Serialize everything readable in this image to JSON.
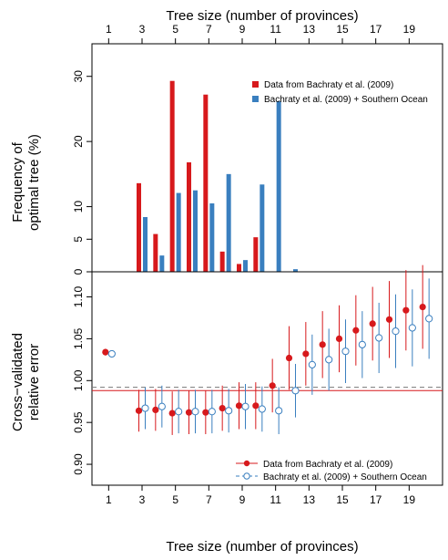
{
  "chart_data": [
    {
      "type": "bar",
      "top_xlabel": "Tree size (number of provinces)",
      "ylabel_line1": "Frequency of",
      "ylabel_line2": "optimal tree (%)",
      "xlim": [
        0,
        21
      ],
      "ylim": [
        0,
        35
      ],
      "xticks": [
        1,
        3,
        5,
        7,
        9,
        11,
        13,
        15,
        17,
        19
      ],
      "yticks": [
        0,
        5,
        10,
        20,
        30
      ],
      "legend_position": "top-right",
      "series": [
        {
          "name": "Data from Bachraty et al. (2009)",
          "color": "#d7191c",
          "x": [
            3,
            4,
            5,
            6,
            7,
            8,
            9,
            10
          ],
          "values": [
            13.6,
            5.8,
            29.3,
            16.8,
            27.2,
            3.1,
            1.2,
            5.3
          ]
        },
        {
          "name": "Bachraty et al. (2009) + Southern Ocean",
          "color": "#3a7fbf",
          "x": [
            3,
            4,
            5,
            6,
            7,
            8,
            9,
            10,
            11,
            12
          ],
          "values": [
            8.4,
            2.5,
            12.1,
            12.5,
            10.5,
            15.0,
            1.8,
            13.4,
            26.2,
            0.4
          ]
        }
      ]
    },
    {
      "type": "scatter",
      "xlabel": "Tree size (number of provinces)",
      "ylabel_line1": "Cross−validated",
      "ylabel_line2": "relative error",
      "xlim": [
        0,
        21
      ],
      "ylim": [
        0.875,
        1.13
      ],
      "xticks": [
        1,
        3,
        5,
        7,
        9,
        11,
        13,
        15,
        17,
        19
      ],
      "yticks": [
        "0.90",
        "0.95",
        "1.00",
        "1.05",
        "1.10"
      ],
      "legend_position": "bottom-right",
      "hline_red": 0.988,
      "hline_blue_dashed": 0.992,
      "series": [
        {
          "name": "Data from Bachraty et al. (2009)",
          "color": "#d7191c",
          "marker": "filled-circle",
          "x": [
            1,
            3,
            4,
            5,
            6,
            7,
            8,
            9,
            10,
            11,
            12,
            13,
            14,
            15,
            16,
            17,
            18,
            19,
            20
          ],
          "y": [
            1.034,
            0.964,
            0.965,
            0.961,
            0.962,
            0.962,
            0.967,
            0.97,
            0.97,
            0.994,
            1.027,
            1.032,
            1.043,
            1.05,
            1.06,
            1.068,
            1.073,
            1.084,
            1.088
          ],
          "err": [
            0.004,
            0.025,
            0.025,
            0.026,
            0.026,
            0.026,
            0.027,
            0.028,
            0.028,
            0.032,
            0.038,
            0.038,
            0.04,
            0.04,
            0.042,
            0.044,
            0.046,
            0.048,
            0.05
          ]
        },
        {
          "name": "Bachraty et al. (2009) + Southern Ocean",
          "color": "#3a7fbf",
          "marker": "open-circle",
          "x": [
            1,
            3,
            4,
            5,
            6,
            7,
            8,
            9,
            10,
            11,
            12,
            13,
            14,
            15,
            16,
            17,
            18,
            19,
            20
          ],
          "y": [
            1.032,
            0.967,
            0.969,
            0.963,
            0.963,
            0.963,
            0.964,
            0.969,
            0.966,
            0.964,
            0.988,
            1.019,
            1.025,
            1.035,
            1.043,
            1.051,
            1.059,
            1.063,
            1.074
          ],
          "err": [
            0.004,
            0.025,
            0.025,
            0.026,
            0.026,
            0.026,
            0.026,
            0.027,
            0.027,
            0.028,
            0.032,
            0.036,
            0.037,
            0.038,
            0.04,
            0.042,
            0.044,
            0.046,
            0.048
          ]
        }
      ]
    }
  ]
}
